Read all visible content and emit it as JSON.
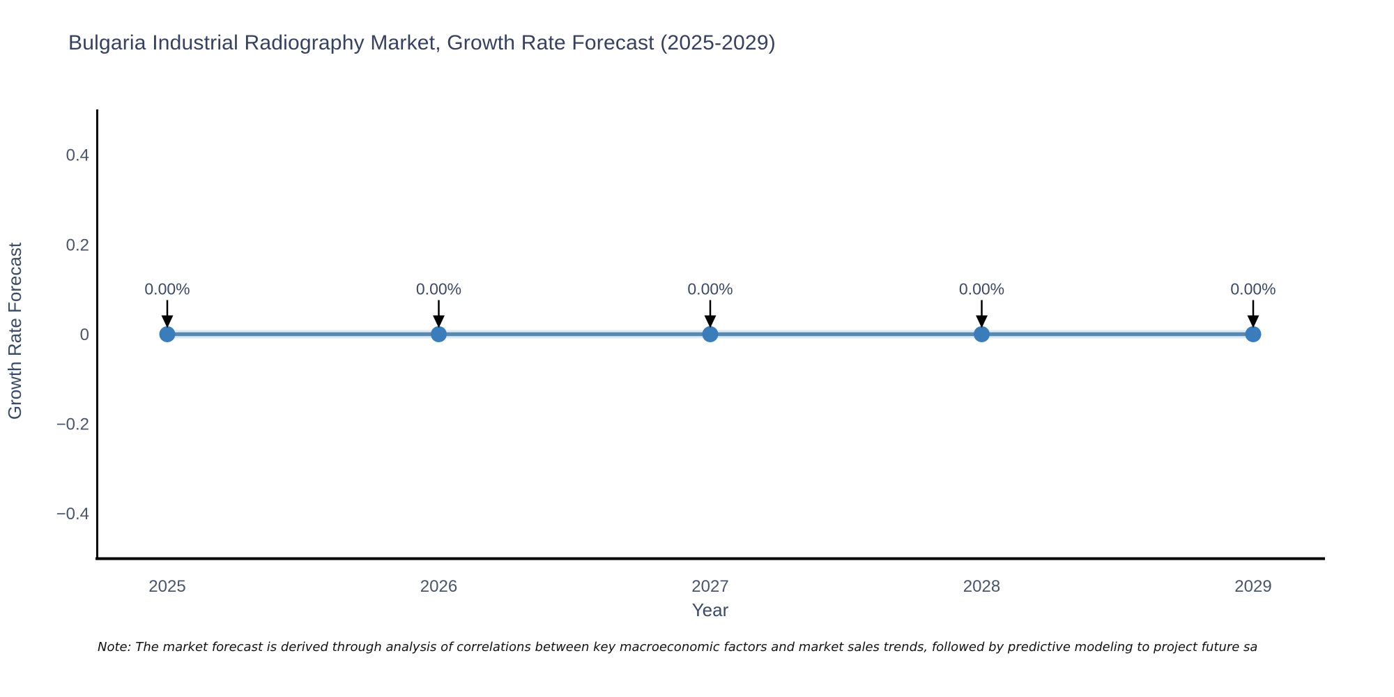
{
  "page": {
    "note": "Note: The market forecast is derived through analysis of correlations between key macroeconomic factors and market sales trends, followed by predictive modeling to project future sa"
  },
  "chart_data": {
    "type": "line",
    "title": "Bulgaria Industrial Radiography Market, Growth Rate Forecast (2025-2029)",
    "xlabel": "Year",
    "ylabel": "Growth Rate Forecast",
    "categories": [
      "2025",
      "2026",
      "2027",
      "2028",
      "2029"
    ],
    "values": [
      0,
      0,
      0,
      0,
      0
    ],
    "point_labels": [
      "0.00%",
      "0.00%",
      "0.00%",
      "0.00%",
      "0.00%"
    ],
    "ylim": [
      -0.5,
      0.5
    ],
    "yticks": [
      0.4,
      0.2,
      0,
      -0.2,
      -0.4
    ],
    "ytick_labels": [
      "0.4",
      "0.2",
      "0",
      "−0.2",
      "−0.4"
    ],
    "grid": false,
    "legend": "none",
    "colors": {
      "line": "#5b89ad",
      "line_halo": "#dceaf5",
      "marker": "#3b7cba",
      "arrow": "#000000",
      "axis": "#000000",
      "title": "#36415e",
      "tick": "#4a5568",
      "note": "#111111"
    }
  }
}
